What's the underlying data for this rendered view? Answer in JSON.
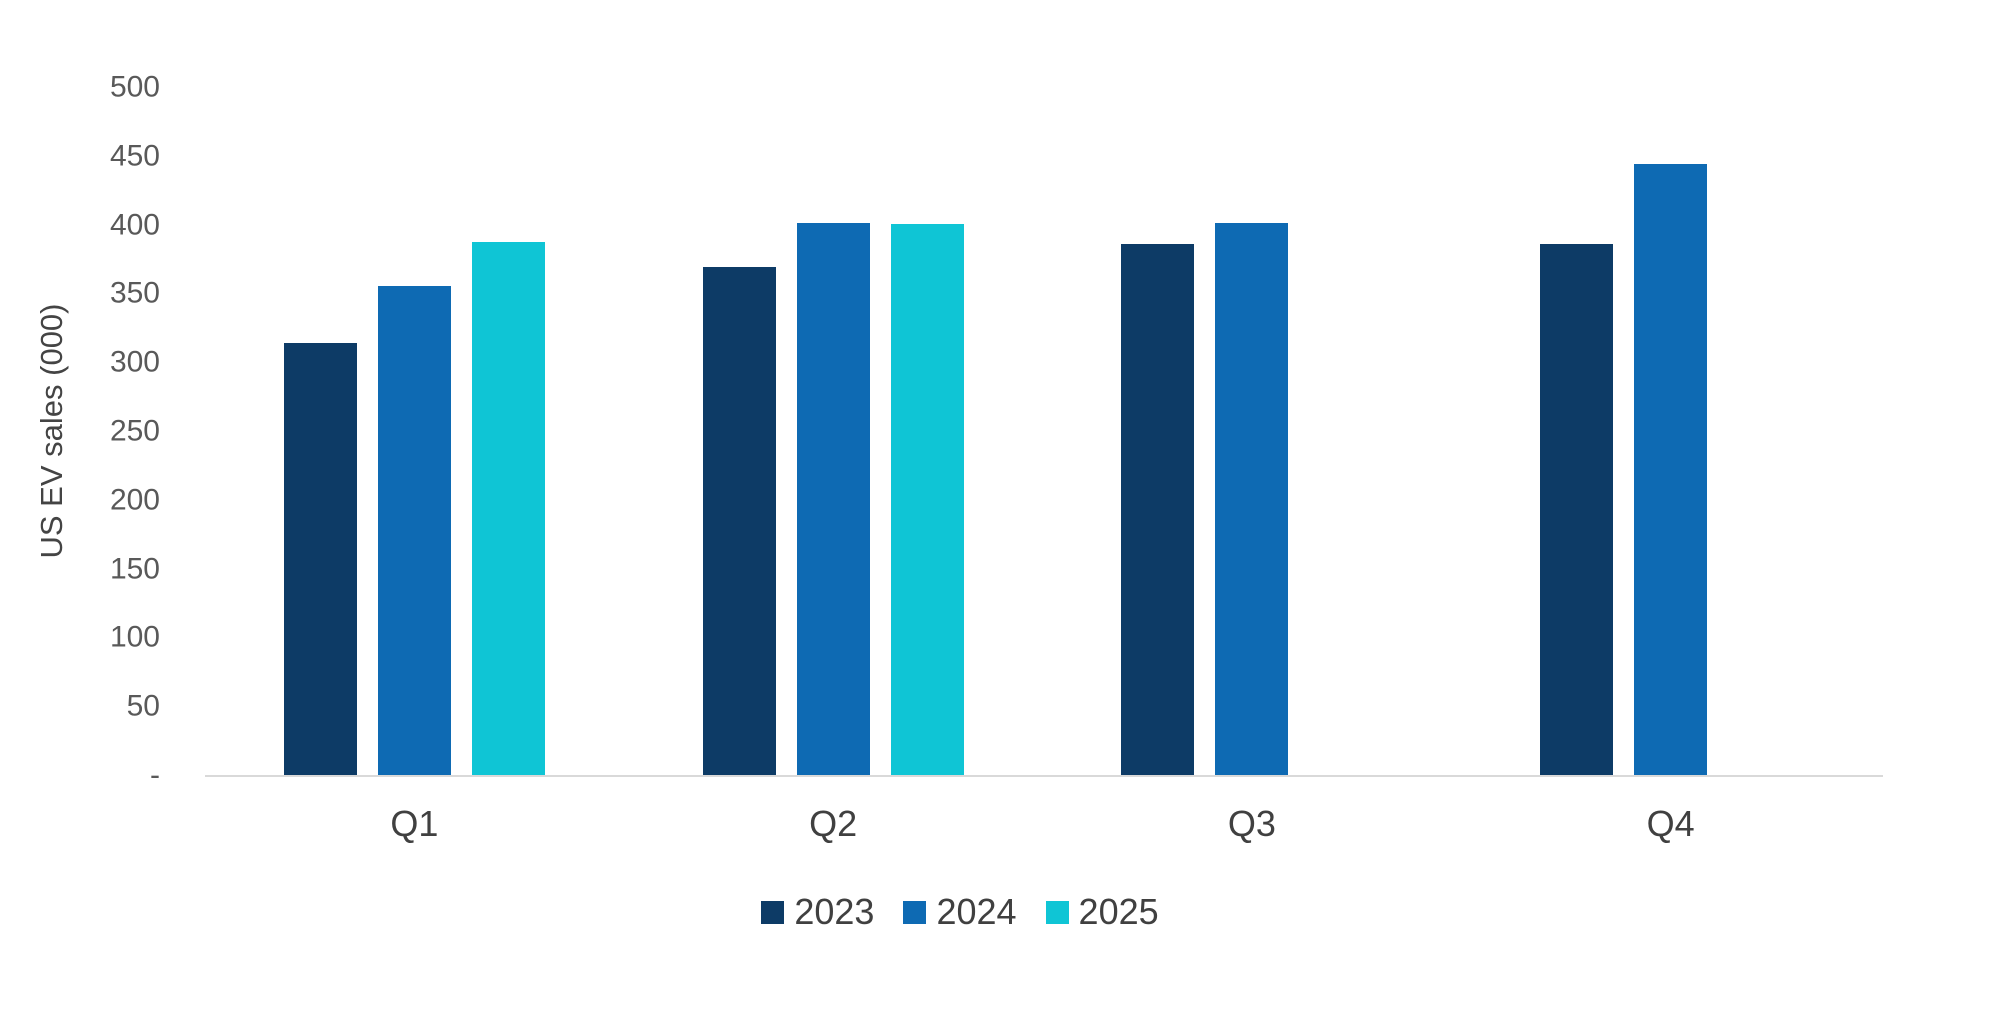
{
  "chart_data": {
    "type": "bar",
    "title": "",
    "ylabel": "US EV sales (000)",
    "xlabel": "",
    "categories": [
      "Q1",
      "Q2",
      "Q3",
      "Q4"
    ],
    "series": [
      {
        "name": "2023",
        "color": "#0d3b66",
        "values": [
          315,
          370,
          387,
          387
        ]
      },
      {
        "name": "2024",
        "color": "#0e6ab3",
        "values": [
          356,
          402,
          402,
          445
        ]
      },
      {
        "name": "2025",
        "color": "#0fc5d5",
        "values": [
          388,
          401,
          null,
          null
        ]
      }
    ],
    "ylim": [
      0,
      500
    ],
    "ytick_step": 50,
    "ytick_labels": [
      "500",
      "450",
      "400",
      "350",
      "300",
      "250",
      "200",
      "150",
      "100",
      "50",
      "-"
    ],
    "zero_tick_label": "-",
    "grid": false,
    "legend_position": "bottom",
    "legend_labels": [
      "2023",
      "2024",
      "2025"
    ]
  },
  "style_tokens": {
    "background": "#ffffff",
    "tick_text_color": "#595959",
    "category_text_color": "#404040",
    "legend_text_color": "#404040",
    "axis_line_color": "#d9d9d9"
  }
}
